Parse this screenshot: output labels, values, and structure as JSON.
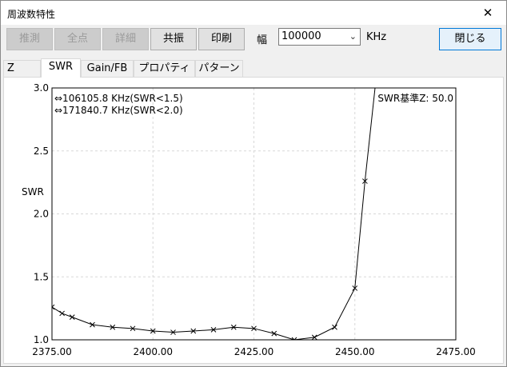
{
  "window": {
    "title": "周波数特性",
    "close_glyph": "✕"
  },
  "toolbar": {
    "estimate": "推測",
    "all_points": "全点",
    "detail": "詳細",
    "resonance": "共振",
    "print": "印刷",
    "width_label": "幅",
    "width_value": "100000",
    "width_unit": "KHz",
    "close": "閉じる"
  },
  "tabs": [
    {
      "label": "Z"
    },
    {
      "label": "SWR"
    },
    {
      "label": "Gain/FB"
    },
    {
      "label": "プロパティ"
    },
    {
      "label": "パターン"
    }
  ],
  "chart_data": {
    "type": "line",
    "ylabel": "SWR",
    "xlim": [
      2375,
      2475
    ],
    "ylim": [
      1.0,
      3.0
    ],
    "x_ticks": [
      "2375.00",
      "2400.00",
      "2425.00",
      "2450.00",
      "2475.00"
    ],
    "y_ticks": [
      "1.0",
      "1.5",
      "2.0",
      "2.5",
      "3.0"
    ],
    "annotations": [
      "⇔106105.8 KHz(SWR<1.5)",
      "⇔171840.7 KHz(SWR<2.0)"
    ],
    "z_note": "SWR基準Z: 50.0",
    "grid": true,
    "series": [
      {
        "x": [
          2375,
          2377.5,
          2380,
          2385,
          2390,
          2395,
          2400,
          2405,
          2410,
          2415,
          2420,
          2425,
          2430,
          2435,
          2440,
          2445,
          2450,
          2452.5,
          2455
        ],
        "y": [
          1.26,
          1.21,
          1.18,
          1.12,
          1.1,
          1.09,
          1.07,
          1.06,
          1.07,
          1.08,
          1.1,
          1.09,
          1.05,
          1.0,
          1.02,
          1.1,
          1.41,
          2.26,
          3.0
        ]
      }
    ]
  },
  "colors": {
    "accent": "#0078d7"
  }
}
